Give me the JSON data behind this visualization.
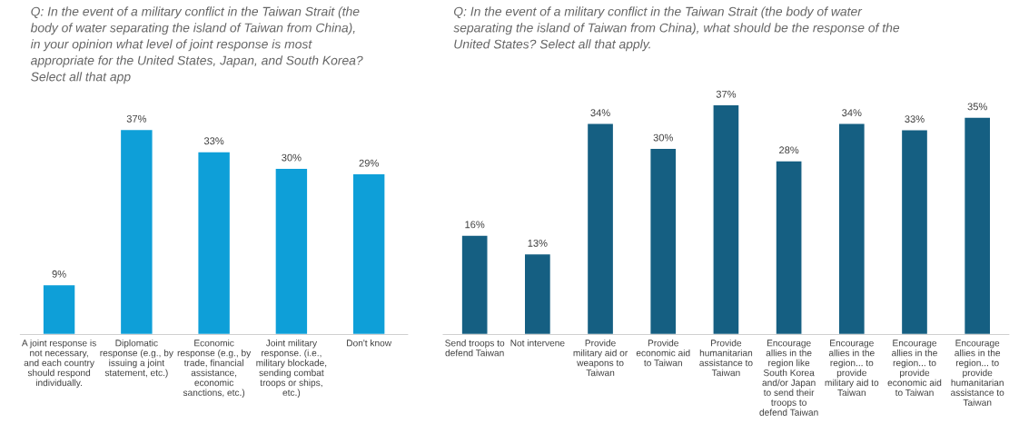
{
  "chart_data": [
    {
      "type": "bar",
      "title": "Q: In the event of a military conflict in the Taiwan Strait (the\nbody of water separating the island of Taiwan from China),\nin your opinion what level of joint response is most\nappropriate for the United States, Japan, and South Korea?\nSelect all that app",
      "categories": [
        "A joint response is\nnot necessary,\nand each country\nshould respond\nindividually.",
        "Diplomatic\nresponse (e.g., by\nissuing a joint\nstatement, etc.)",
        "Economic\nresponse (e.g., by\ntrade, financial\nassistance,\neconomic\nsanctions, etc.)",
        "Joint military\nresponse. (i.e.,\nmilitary blockade,\nsending combat\ntroops or ships,\netc.)",
        "Don't know"
      ],
      "values": [
        9,
        37,
        33,
        30,
        29
      ],
      "value_labels": [
        "9%",
        "37%",
        "33%",
        "30%",
        "29%"
      ],
      "color": "#0e9fd8"
    },
    {
      "type": "bar",
      "title": "Q: In the event of a military conflict in the Taiwan Strait (the body of water\nseparating the island of Taiwan from China), what should be the response of the\nUnited States? Select all that apply.",
      "categories": [
        "Send troops to\ndefend Taiwan",
        "Not intervene",
        "Provide\nmilitary aid or\nweapons to\nTaiwan",
        "Provide\neconomic aid\nto Taiwan",
        "Provide\nhumanitarian\nassistance to\nTaiwan",
        "Encourage\nallies in the\nregion like\nSouth Korea\nand/or Japan\nto send their\ntroops to\ndefend Taiwan",
        "Encourage\nallies in the\nregion... to\nprovide\nmilitary aid to\nTaiwan",
        "Encourage\nallies in the\nregion... to\nprovide\neconomic aid\nto Taiwan",
        "Encourage\nallies in the\nregion... to\nprovide\nhumanitarian\nassistance to\nTaiwan"
      ],
      "values": [
        16,
        13,
        34,
        30,
        37,
        28,
        34,
        33,
        35
      ],
      "value_labels": [
        "16%",
        "13%",
        "34%",
        "30%",
        "37%",
        "28%",
        "34%",
        "33%",
        "35%"
      ],
      "color": "#155f82"
    }
  ]
}
